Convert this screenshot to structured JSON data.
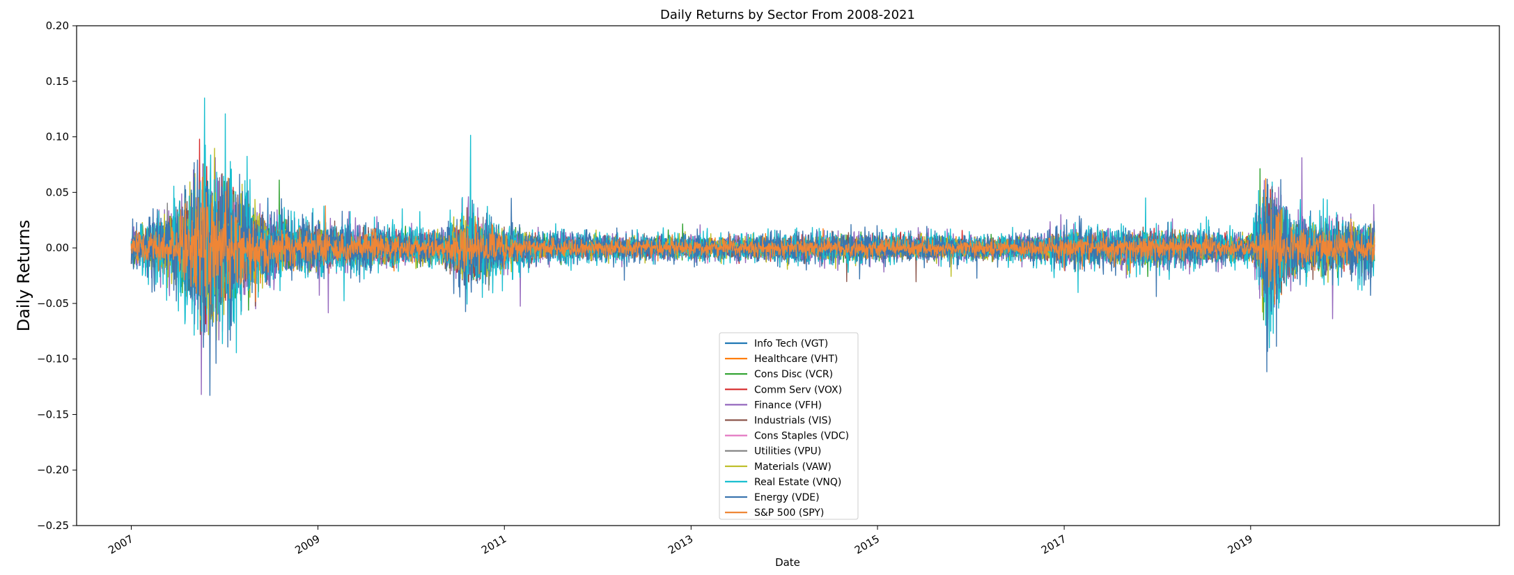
{
  "chart_data": {
    "type": "line",
    "title": "Daily Returns by Sector From 2008-2021",
    "xlabel": "Date",
    "ylabel": "Daily Returns",
    "xlim": [
      "2006-06-01",
      "2021-09-01"
    ],
    "ylim": [
      -0.25,
      0.2
    ],
    "grid": false,
    "legend_position": "lower center",
    "x_ticks": [
      "2007",
      "2009",
      "2011",
      "2013",
      "2015",
      "2017",
      "2019"
    ],
    "y_ticks": [
      "0.20",
      "0.15",
      "0.10",
      "0.05",
      "0.00",
      "−0.05",
      "−0.10",
      "−0.15",
      "−0.20",
      "−0.25"
    ],
    "date_range": [
      "2007-01-01",
      "2020-05-01"
    ],
    "series": [
      {
        "name": "Info Tech (VGT)",
        "color": "#1f77b4",
        "scale": 1.0
      },
      {
        "name": "Healthcare (VHT)",
        "color": "#ff7f0e",
        "scale": 0.75
      },
      {
        "name": "Cons Disc (VCR)",
        "color": "#2ca02c",
        "scale": 0.95
      },
      {
        "name": "Comm Serv (VOX)",
        "color": "#d62728",
        "scale": 0.9
      },
      {
        "name": "Finance (VFH)",
        "color": "#9467bd",
        "scale": 1.35
      },
      {
        "name": "Industrials (VIS)",
        "color": "#8c564b",
        "scale": 1.0
      },
      {
        "name": "Cons Staples (VDC)",
        "color": "#e377c2",
        "scale": 0.7
      },
      {
        "name": "Utilities (VPU)",
        "color": "#7f7f7f",
        "scale": 0.85
      },
      {
        "name": "Materials (VAW)",
        "color": "#bcbd22",
        "scale": 1.1
      },
      {
        "name": "Real Estate (VNQ)",
        "color": "#17becf",
        "scale": 1.55
      },
      {
        "name": "Energy (VDE)",
        "color": "#3b75af",
        "scale": 1.45
      },
      {
        "name": "S&P 500 (SPY)",
        "color": "#ef8636",
        "scale": 0.8
      }
    ],
    "volatility_profile": [
      {
        "date": "2007-01-01",
        "vol": 0.012
      },
      {
        "date": "2007-06-01",
        "vol": 0.02
      },
      {
        "date": "2007-10-15",
        "vol": 0.055
      },
      {
        "date": "2008-01-15",
        "vol": 0.045
      },
      {
        "date": "2008-04-15",
        "vol": 0.028
      },
      {
        "date": "2008-08-01",
        "vol": 0.017
      },
      {
        "date": "2009-06-01",
        "vol": 0.013
      },
      {
        "date": "2010-05-01",
        "vol": 0.01
      },
      {
        "date": "2010-08-10",
        "vol": 0.026
      },
      {
        "date": "2010-12-01",
        "vol": 0.015
      },
      {
        "date": "2011-06-01",
        "vol": 0.008
      },
      {
        "date": "2013-06-01",
        "vol": 0.007
      },
      {
        "date": "2014-06-01",
        "vol": 0.009
      },
      {
        "date": "2016-06-01",
        "vol": 0.007
      },
      {
        "date": "2017-02-01",
        "vol": 0.011
      },
      {
        "date": "2018-01-01",
        "vol": 0.012
      },
      {
        "date": "2019-01-01",
        "vol": 0.008
      },
      {
        "date": "2019-03-15",
        "vol": 0.048
      },
      {
        "date": "2019-06-01",
        "vol": 0.02
      },
      {
        "date": "2019-09-01",
        "vol": 0.015
      },
      {
        "date": "2020-05-01",
        "vol": 0.016
      }
    ]
  }
}
